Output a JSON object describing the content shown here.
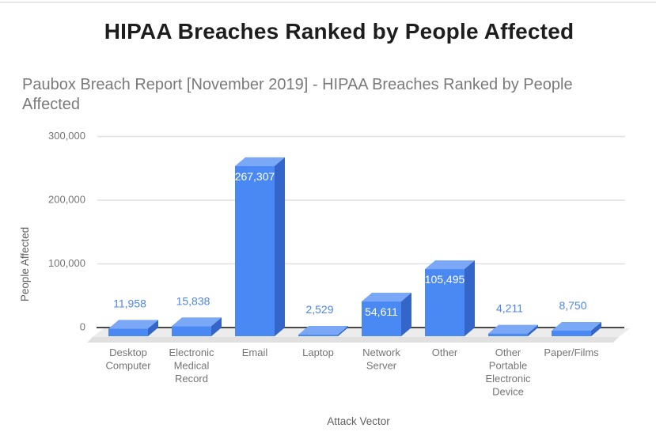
{
  "page": {
    "title": "HIPAA Breaches Ranked by People Affected",
    "subtitle": "Paubox Breach Report [November 2019] - HIPAA Breaches Ranked by People Affected"
  },
  "chart_data": {
    "type": "bar",
    "variant": "3d-column",
    "title": "HIPAA Breaches Ranked by People Affected",
    "subtitle": "Paubox Breach Report [November 2019] - HIPAA Breaches Ranked by People Affected",
    "xlabel": "Attack Vector",
    "ylabel": "People Affected",
    "categories": [
      "Desktop Computer",
      "Electronic Medical Record",
      "Email",
      "Laptop",
      "Network Server",
      "Other",
      "Other Portable Electronic Device",
      "Paper/Films"
    ],
    "category_label_lines": [
      [
        "Desktop",
        "Computer"
      ],
      [
        "Electronic",
        "Medical",
        "Record"
      ],
      [
        "Email"
      ],
      [
        "Laptop"
      ],
      [
        "Network",
        "Server"
      ],
      [
        "Other"
      ],
      [
        "Other",
        "Portable",
        "Electronic",
        "Device"
      ],
      [
        "Paper/Films"
      ]
    ],
    "values": [
      11958,
      15838,
      267307,
      2529,
      54611,
      105495,
      4211,
      8750
    ],
    "data_labels": [
      "11,958",
      "15,838",
      "267,307",
      "2,529",
      "54,611",
      "105,495",
      "4,211",
      "8,750"
    ],
    "ylim": [
      0,
      300000
    ],
    "yticks": [
      0,
      100000,
      200000,
      300000
    ],
    "ytick_labels": [
      "0",
      "100,000",
      "200,000",
      "300,000"
    ],
    "grid": true,
    "legend": "none",
    "colors": {
      "bar_front": "#4a89f4",
      "bar_top": "#7aa8f7",
      "bar_side": "#3465c8",
      "label_outside": "#4c86f0",
      "label_inside": "#ffffff",
      "gridline": "#e0e0e0",
      "axis_line": "#474747",
      "floor_top": "#ececec",
      "floor_front": "#e0e0e0",
      "tick_text": "#757575",
      "axis_title_text": "#5f5f5f",
      "title_text": "#1d1d1d",
      "subtitle_text": "#7a7a7a"
    }
  }
}
